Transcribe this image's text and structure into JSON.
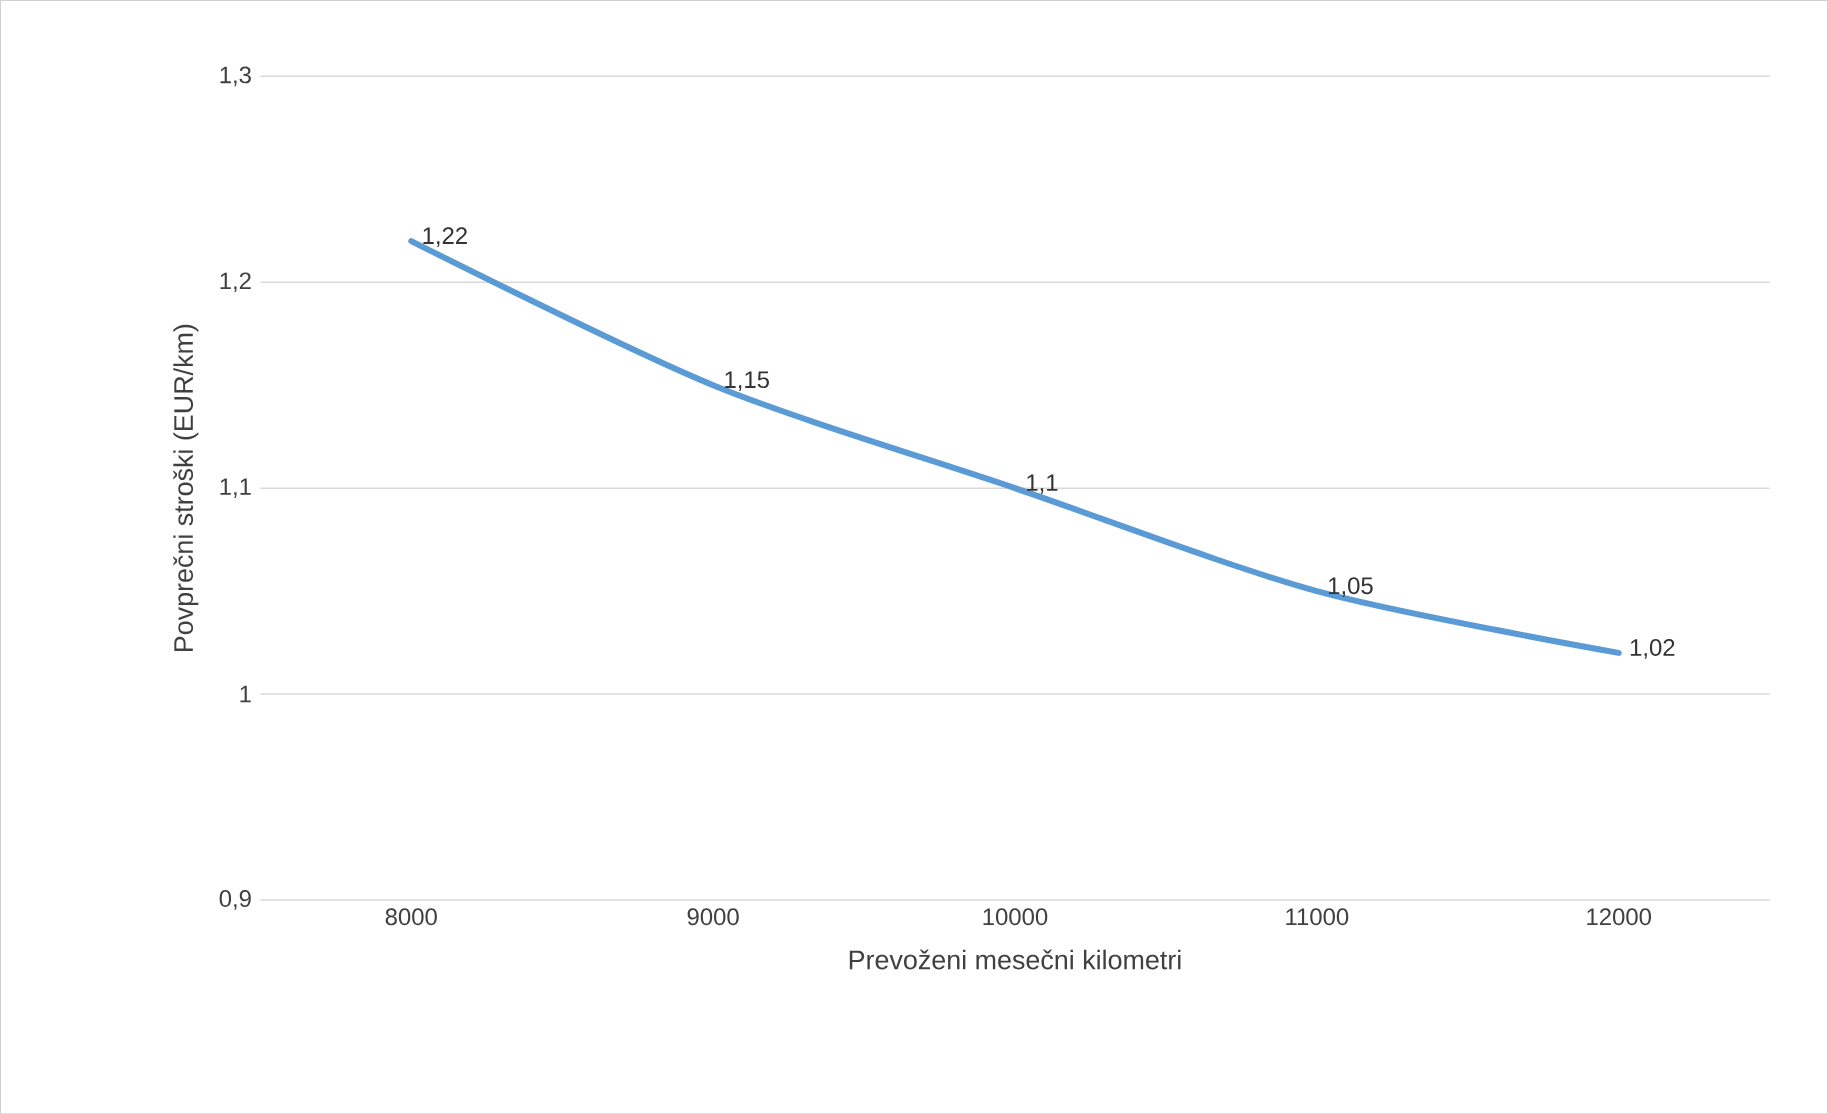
{
  "chart_data": {
    "type": "line",
    "xlabel": "Prevoženi mesečni kilometri",
    "ylabel": "Povprečni stroški (EUR/km)",
    "categories": [
      "8000",
      "9000",
      "10000",
      "11000",
      "12000"
    ],
    "series": [
      {
        "color": "#5b9bd5",
        "values": [
          1.22,
          1.15,
          1.1,
          1.05,
          1.02
        ],
        "value_labels": [
          "1,22",
          "1,15",
          "1,1",
          "1,05",
          "1,02"
        ]
      }
    ],
    "ylim": [
      0.9,
      1.3
    ],
    "yticks": [
      {
        "value": 0.9,
        "label": "0,9"
      },
      1,
      {
        "value": 1.1,
        "label": "1,1"
      },
      {
        "value": 1.2,
        "label": "1,2"
      },
      {
        "value": 1.3,
        "label": "1,3"
      }
    ],
    "grid": "y",
    "marker": "none",
    "line_style": "solid"
  }
}
